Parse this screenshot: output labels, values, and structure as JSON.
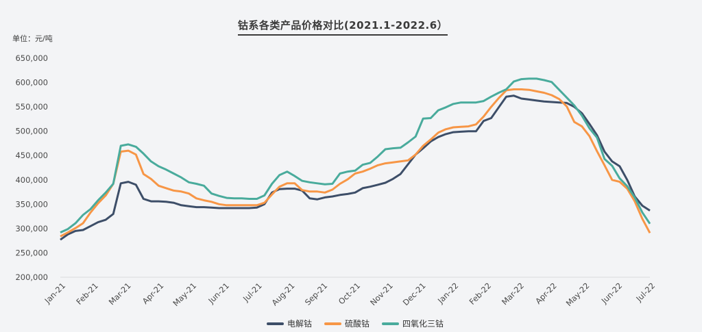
{
  "page": {
    "background_color": "#f3f4f6"
  },
  "header": {
    "title": "钴系各类产品价格对比(2021.1-2022.6）",
    "unit_label": "单位：元/吨"
  },
  "chart_data": {
    "type": "line",
    "title": "钴系各类产品价格对比(2021.1-2022.6）",
    "ylabel": "单位：元/吨",
    "xlabel": "",
    "ylim": [
      200000,
      650000
    ],
    "y_tick_step": 50000,
    "y_tick_labels": [
      "200,000",
      "250,000",
      "300,000",
      "350,000",
      "400,000",
      "450,000",
      "500,000",
      "550,000",
      "600,000",
      "650,000"
    ],
    "grid": false,
    "legend_position": "bottom",
    "sampling": "weekly (approx., Jan-2021 to mid-Jul-2022)",
    "x_labels": [
      "Jan-21",
      "Feb-21",
      "Mar-21",
      "Apr-21",
      "May-21",
      "Jun-21",
      "Jul-21",
      "Aug-21",
      "Sep-21",
      "Oct-21",
      "Nov-21",
      "Dec-21",
      "Jan-22",
      "Feb-22",
      "Mar-22",
      "Apr-22",
      "May-22",
      "Jun-22",
      "Jul-22"
    ],
    "axis_colors": {
      "axis_line": "#d9dadc",
      "tick_text": "#4a4a4a"
    },
    "series": [
      {
        "name": "电解钴",
        "slug": "electrolytic-cobalt",
        "color": "#3d4e68",
        "values": [
          277000,
          288000,
          295000,
          297000,
          305000,
          313000,
          318000,
          330000,
          393000,
          396000,
          390000,
          361000,
          356000,
          356000,
          355000,
          353000,
          348000,
          346000,
          344000,
          344000,
          343000,
          342000,
          342000,
          342000,
          342000,
          342000,
          343000,
          350000,
          374000,
          381000,
          382000,
          382000,
          378000,
          362000,
          360000,
          364000,
          366000,
          369000,
          371000,
          374000,
          383000,
          386000,
          390000,
          394000,
          402000,
          412000,
          432000,
          452000,
          465000,
          479000,
          488000,
          494000,
          498000,
          499000,
          500000,
          500000,
          521000,
          527000,
          549000,
          571000,
          573000,
          567000,
          565000,
          563000,
          561000,
          560000,
          559000,
          558000,
          550000,
          537000,
          515000,
          492000,
          458000,
          438000,
          428000,
          400000,
          366000,
          347000,
          337000
        ]
      },
      {
        "name": "硫酸钴",
        "slug": "cobalt-sulfate",
        "color": "#f79646",
        "values": [
          284000,
          292000,
          301000,
          311000,
          333000,
          352000,
          368000,
          392000,
          458000,
          460000,
          452000,
          412000,
          402000,
          388000,
          383000,
          378000,
          376000,
          372000,
          362000,
          358000,
          355000,
          350000,
          348000,
          348000,
          348000,
          348000,
          348000,
          353000,
          370000,
          386000,
          393000,
          393000,
          379000,
          376000,
          376000,
          374000,
          380000,
          392000,
          401000,
          413000,
          417000,
          423000,
          430000,
          434000,
          436000,
          438000,
          440000,
          452000,
          470000,
          483000,
          497000,
          504000,
          508000,
          509000,
          510000,
          514000,
          530000,
          550000,
          568000,
          584000,
          586000,
          586000,
          585000,
          582000,
          579000,
          574000,
          566000,
          551000,
          519000,
          510000,
          490000,
          459000,
          430000,
          400000,
          396000,
          382000,
          356000,
          320000,
          291000
        ]
      },
      {
        "name": "四氧化三钴",
        "slug": "tricobalt-tetroxide",
        "color": "#49ab9c",
        "values": [
          292000,
          299000,
          311000,
          328000,
          340000,
          358000,
          374000,
          392000,
          470000,
          473000,
          468000,
          454000,
          438000,
          428000,
          421000,
          413000,
          405000,
          395000,
          392000,
          388000,
          372000,
          367000,
          363000,
          362000,
          362000,
          361000,
          361000,
          368000,
          392000,
          410000,
          417000,
          408000,
          398000,
          395000,
          393000,
          391000,
          392000,
          413000,
          417000,
          419000,
          431000,
          435000,
          448000,
          463000,
          465000,
          466000,
          477000,
          489000,
          526000,
          527000,
          543000,
          549000,
          556000,
          559000,
          559000,
          559000,
          562000,
          571000,
          579000,
          586000,
          602000,
          607000,
          608000,
          608000,
          605000,
          601000,
          585000,
          569000,
          553000,
          532000,
          506000,
          487000,
          443000,
          429000,
          403000,
          387000,
          364000,
          333000,
          310000
        ]
      }
    ]
  }
}
